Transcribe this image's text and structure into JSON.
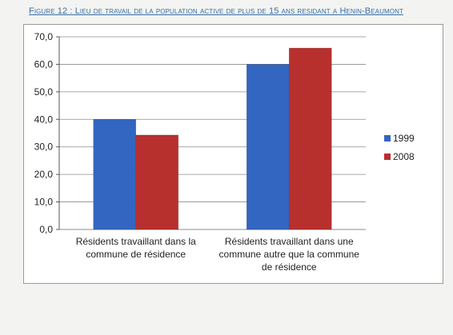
{
  "figure": {
    "title": "Figure 12 : Lieu de travail de la population active de plus de 15 ans residant a Henin-Beaumont"
  },
  "colors": {
    "series_1999": "#3366c0",
    "series_2008": "#b8302e",
    "grid": "#8c8c8c"
  },
  "chart_data": {
    "type": "bar",
    "title": "",
    "xlabel": "",
    "ylabel": "",
    "ylim": [
      0,
      70
    ],
    "yticks": [
      "0,0",
      "10,0",
      "20,0",
      "30,0",
      "40,0",
      "50,0",
      "60,0",
      "70,0"
    ],
    "grid": true,
    "legend_position": "right",
    "categories": [
      [
        "Résidents travaillant dans la",
        "commune de résidence"
      ],
      [
        "Résidents travaillant dans une",
        "commune autre que la commune",
        "de résidence"
      ]
    ],
    "series": [
      {
        "name": "1999",
        "values": [
          40.0,
          60.0
        ]
      },
      {
        "name": "2008",
        "values": [
          34.3,
          65.9
        ]
      }
    ]
  }
}
